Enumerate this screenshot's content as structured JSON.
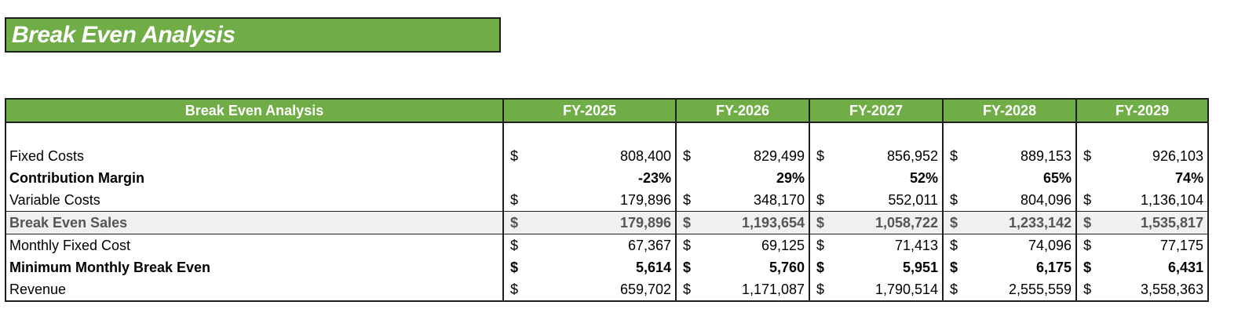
{
  "title": "Break Even Analysis",
  "table": {
    "header_label": "Break Even Analysis",
    "years": [
      "FY-2025",
      "FY-2026",
      "FY-2027",
      "FY-2028",
      "FY-2029"
    ],
    "rows": [
      {
        "label": "Fixed Costs",
        "currency": [
          "$",
          "$",
          "$",
          "$",
          "$"
        ],
        "values": [
          "808,400",
          "829,499",
          "856,952",
          "889,153",
          "926,103"
        ]
      },
      {
        "label": "Contribution Margin",
        "currency": [
          "",
          "",
          "",
          "",
          ""
        ],
        "values": [
          "-23%",
          "29%",
          "52%",
          "65%",
          "74%"
        ]
      },
      {
        "label": "Variable Costs",
        "currency": [
          "$",
          "$",
          "$",
          "$",
          "$"
        ],
        "values": [
          "179,896",
          "348,170",
          "552,011",
          "804,096",
          "1,136,104"
        ]
      },
      {
        "label": "Break Even Sales",
        "currency": [
          "$",
          "$",
          "$",
          "$",
          "$"
        ],
        "values": [
          "179,896",
          "1,193,654",
          "1,058,722",
          "1,233,142",
          "1,535,817"
        ]
      },
      {
        "label": "Monthly Fixed Cost",
        "currency": [
          "$",
          "$",
          "$",
          "$",
          "$"
        ],
        "values": [
          "67,367",
          "69,125",
          "71,413",
          "74,096",
          "77,175"
        ]
      },
      {
        "label": "Minimum Monthly Break Even",
        "currency": [
          "$",
          "$",
          "$",
          "$",
          "$"
        ],
        "values": [
          "5,614",
          "5,760",
          "5,951",
          "6,175",
          "6,431"
        ]
      },
      {
        "label": "Revenue",
        "currency": [
          "$",
          "$",
          "$",
          "$",
          "$"
        ],
        "values": [
          "659,702",
          "1,171,087",
          "1,790,514",
          "2,555,559",
          "3,558,363"
        ]
      }
    ]
  }
}
